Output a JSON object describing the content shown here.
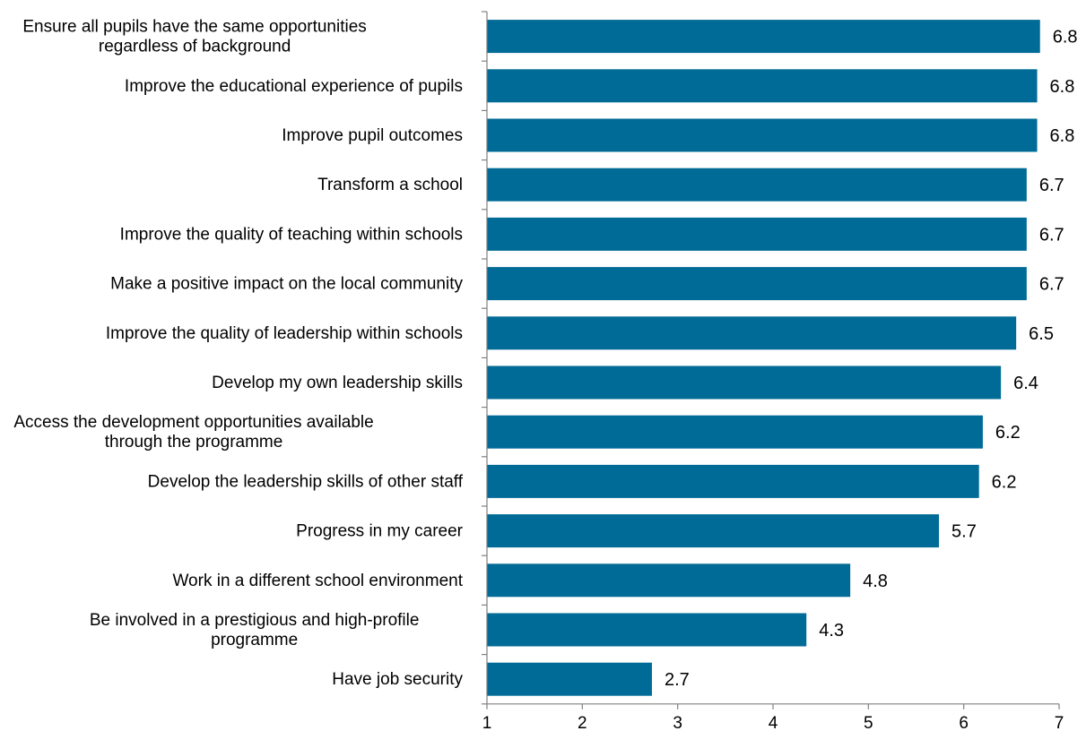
{
  "chart_data": {
    "type": "bar",
    "orientation": "horizontal",
    "title": "",
    "xlabel": "",
    "ylabel": "",
    "bar_color": "#006b96",
    "xlim": [
      1,
      7
    ],
    "xticks": [
      "1",
      "2",
      "3",
      "4",
      "5",
      "6",
      "7"
    ],
    "grid": false,
    "categories": [
      [
        "Ensure all pupils have the same opportunities",
        "regardless of background"
      ],
      [
        "Improve the educational experience of pupils"
      ],
      [
        "Improve pupil outcomes"
      ],
      [
        "Transform a school"
      ],
      [
        "Improve the quality of teaching within schools"
      ],
      [
        "Make a positive impact on the local community"
      ],
      [
        "Improve the quality of leadership within schools"
      ],
      [
        "Develop my own leadership skills"
      ],
      [
        "Access the development opportunities available",
        "through the programme"
      ],
      [
        "Develop the leadership skills of other staff"
      ],
      [
        "Progress in my career"
      ],
      [
        "Work in a different school environment"
      ],
      [
        "Be involved in a prestigious and high-profile",
        "programme"
      ],
      [
        "Have job security"
      ]
    ],
    "values": [
      6.8,
      6.77,
      6.77,
      6.66,
      6.66,
      6.66,
      6.55,
      6.39,
      6.2,
      6.16,
      5.74,
      4.81,
      4.35,
      2.73
    ],
    "data_labels": [
      "6.8",
      "6.8",
      "6.8",
      "6.7",
      "6.7",
      "6.7",
      "6.5",
      "6.4",
      "6.2",
      "6.2",
      "5.7",
      "4.8",
      "4.3",
      "2.7"
    ]
  }
}
